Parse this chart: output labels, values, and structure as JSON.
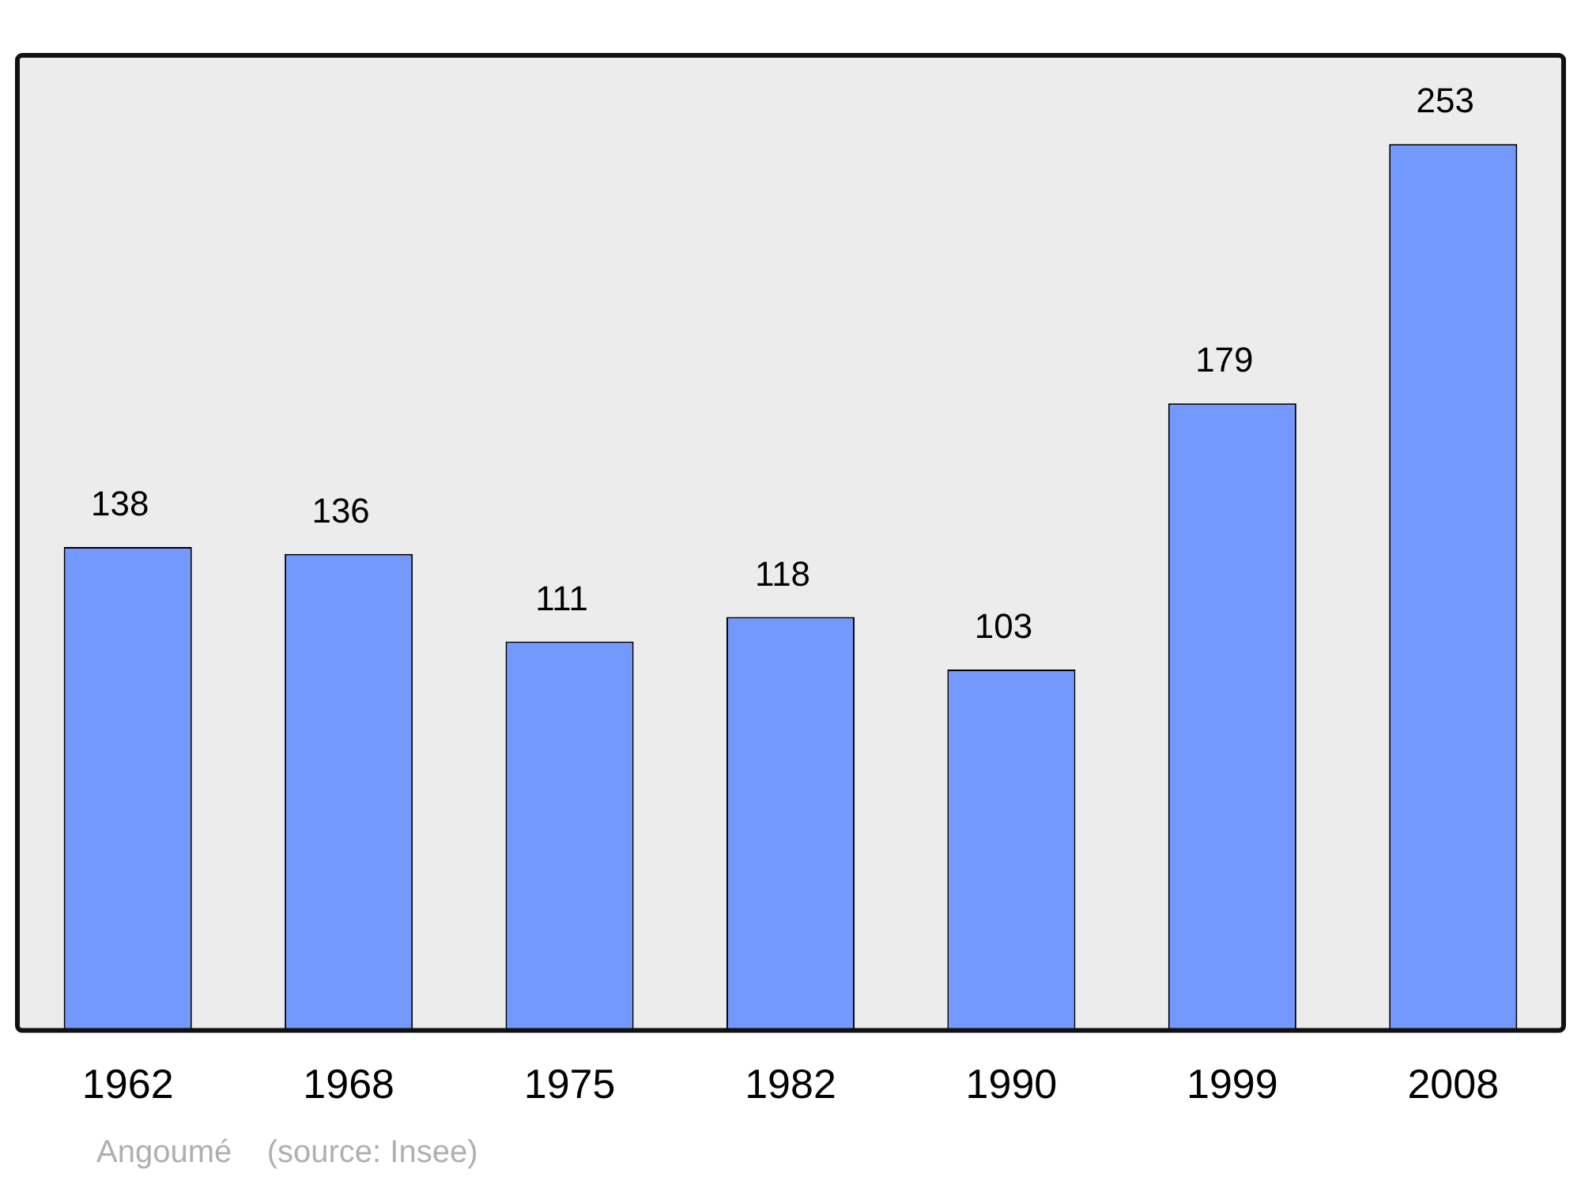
{
  "chart_data": {
    "type": "bar",
    "categories": [
      "1962",
      "1968",
      "1975",
      "1982",
      "1990",
      "1999",
      "2008"
    ],
    "values": [
      138,
      136,
      111,
      118,
      103,
      179,
      253
    ],
    "color": "#7399ff",
    "data_labels": true,
    "grid": false,
    "legend": false,
    "tick_labels": "x",
    "annotations": [
      "Angoumé    (source: Insee)"
    ]
  }
}
